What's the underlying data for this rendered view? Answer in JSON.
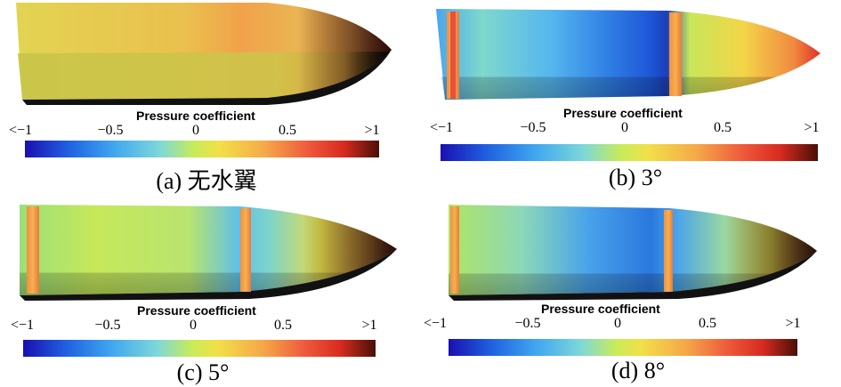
{
  "colorbar_title": "Pressure coefficient",
  "ticks": [
    "<−1",
    "−0.5",
    "0",
    "0.5",
    ">1"
  ],
  "colormap": [
    "#1a10b0",
    "#1f5fe0",
    "#3fa6f0",
    "#7dd8d8",
    "#c8ec58",
    "#f2e048",
    "#f5a848",
    "#ee5a3c",
    "#d82b20",
    "#4a0f06"
  ],
  "panels": [
    {
      "caption": "(a) 无水翼",
      "has_foils": false
    },
    {
      "caption": "(b) 3°",
      "has_foils": true
    },
    {
      "caption": "(c) 5°",
      "has_foils": true
    },
    {
      "caption": "(d) 8°",
      "has_foils": true
    }
  ]
}
